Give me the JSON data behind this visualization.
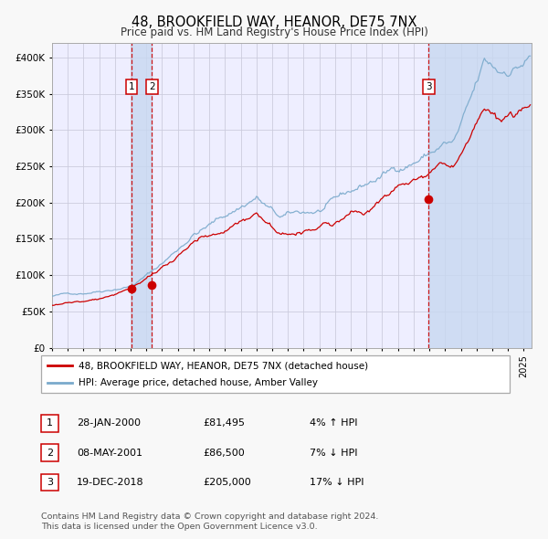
{
  "title": "48, BROOKFIELD WAY, HEANOR, DE75 7NX",
  "subtitle": "Price paid vs. HM Land Registry's House Price Index (HPI)",
  "legend_property": "48, BROOKFIELD WAY, HEANOR, DE75 7NX (detached house)",
  "legend_hpi": "HPI: Average price, detached house, Amber Valley",
  "property_color": "#cc0000",
  "hpi_color": "#7aaacc",
  "background_color": "#f8f8f8",
  "plot_bg_color": "#eeeeff",
  "grid_color": "#ccccdd",
  "transactions": [
    {
      "label": "1",
      "date": "28-JAN-2000",
      "price": 81495,
      "hpi_pct": "4% ↑ HPI",
      "x_year": 2000.07
    },
    {
      "label": "2",
      "date": "08-MAY-2001",
      "price": 86500,
      "hpi_pct": "7% ↓ HPI",
      "x_year": 2001.35
    },
    {
      "label": "3",
      "date": "19-DEC-2018",
      "price": 205000,
      "hpi_pct": "17% ↓ HPI",
      "x_year": 2018.96
    }
  ],
  "footnote1": "Contains HM Land Registry data © Crown copyright and database right 2024.",
  "footnote2": "This data is licensed under the Open Government Licence v3.0.",
  "ylim": [
    0,
    420000
  ],
  "yticks": [
    0,
    50000,
    100000,
    150000,
    200000,
    250000,
    300000,
    350000,
    400000
  ],
  "xlim": [
    1995.0,
    2025.5
  ],
  "table_rows": [
    {
      "num": "1",
      "date": "28-JAN-2000",
      "price": "£81,495",
      "pct": "4% ↑ HPI"
    },
    {
      "num": "2",
      "date": "08-MAY-2001",
      "price": "£86,500",
      "pct": "7% ↓ HPI"
    },
    {
      "num": "3",
      "date": "19-DEC-2018",
      "price": "£205,000",
      "pct": "17% ↓ HPI"
    }
  ]
}
